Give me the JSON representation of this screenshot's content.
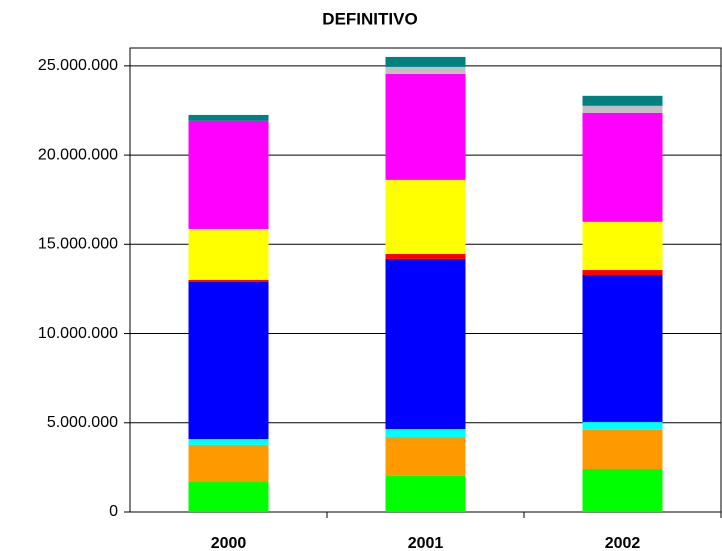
{
  "chart_data": {
    "type": "stacked-bar",
    "title": "DEFINITIVO",
    "categories": [
      "2000",
      "2001",
      "2002"
    ],
    "series": [
      {
        "color": "#00ff00",
        "values": [
          1680000,
          2020000,
          2410000
        ]
      },
      {
        "color": "#ff9900",
        "values": [
          2080000,
          2180000,
          2190000
        ]
      },
      {
        "color": "#00ffff",
        "values": [
          330000,
          450000,
          440000
        ]
      },
      {
        "color": "#0000ff",
        "values": [
          8800000,
          9530000,
          8240000
        ]
      },
      {
        "color": "#ff0000",
        "values": [
          110000,
          280000,
          280000
        ]
      },
      {
        "color": "#ffff00",
        "values": [
          2860000,
          4150000,
          2700000
        ]
      },
      {
        "color": "#ff00ff",
        "values": [
          6060000,
          5940000,
          6110000
        ]
      },
      {
        "color": "#c0c0c0",
        "values": [
          0,
          390000,
          390000
        ]
      },
      {
        "color": "#008080",
        "values": [
          330000,
          560000,
          560000
        ]
      }
    ],
    "ylim": [
      0,
      26000000
    ],
    "yticks": [
      0,
      {
        "value": 5000000,
        "label": "5.000.000"
      },
      {
        "value": 10000000,
        "label": "10.000.000"
      },
      {
        "value": 15000000,
        "label": "15.000.000"
      },
      {
        "value": 20000000,
        "label": "20.000.000"
      },
      {
        "value": 25000000,
        "label": "25.000.000"
      }
    ],
    "grid": true
  }
}
